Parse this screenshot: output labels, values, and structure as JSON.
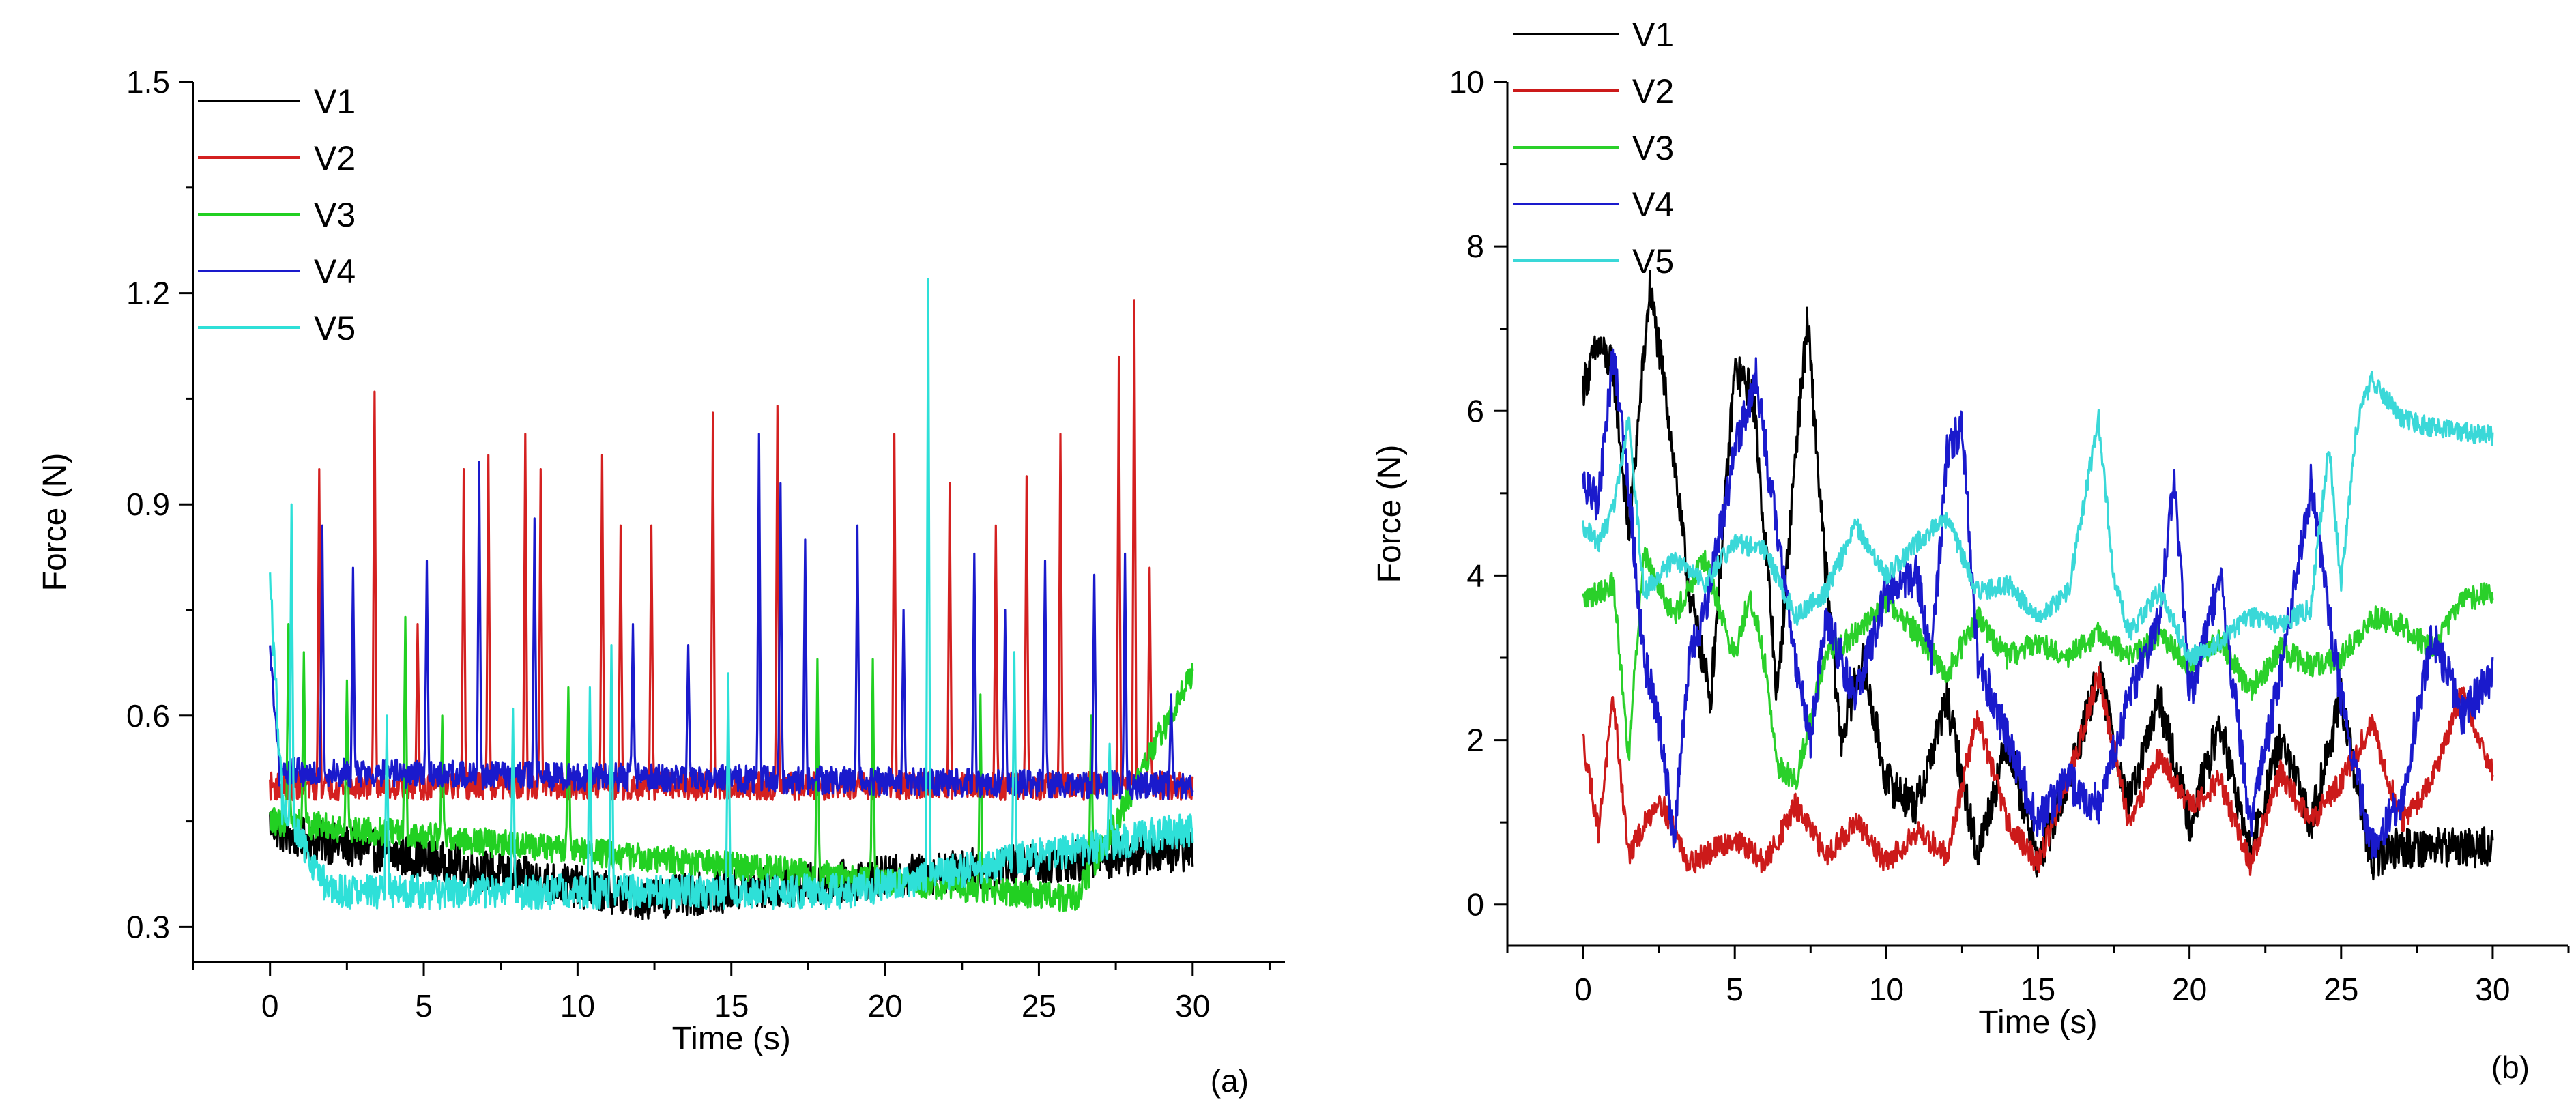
{
  "chart_data": [
    {
      "type": "line",
      "panel_label": "(a)",
      "xlabel": "Time (s)",
      "ylabel": "Force (N)",
      "xlim": [
        -2.5,
        33
      ],
      "ylim": [
        0.25,
        1.5
      ],
      "xticks": [
        0,
        5,
        10,
        15,
        20,
        25,
        30
      ],
      "yticks": [
        0.3,
        0.6,
        0.9,
        1.2,
        1.5
      ],
      "ytick_labels": [
        "0.3",
        "0.6",
        "0.9",
        "1.2",
        "1.5"
      ],
      "legend_position": "top-left",
      "series": [
        {
          "name": "V1",
          "color": "#000000",
          "baseline": 0.42,
          "noise": 0.03,
          "points": [
            [
              0,
              0.45
            ],
            [
              0.5,
              0.43
            ],
            [
              12.2,
              0.34
            ],
            [
              30,
              0.41
            ]
          ],
          "spikes": []
        },
        {
          "name": "V2",
          "color": "#d42020",
          "baseline": 0.5,
          "noise": 0.02,
          "points": [
            [
              0,
              0.5
            ],
            [
              30,
              0.5
            ]
          ],
          "spikes": [
            [
              1.6,
              0.95
            ],
            [
              3.4,
              1.06
            ],
            [
              4.8,
              0.73
            ],
            [
              6.3,
              0.95
            ],
            [
              7.1,
              0.97
            ],
            [
              8.3,
              1.0
            ],
            [
              8.8,
              0.95
            ],
            [
              10.8,
              0.97
            ],
            [
              11.4,
              0.87
            ],
            [
              12.4,
              0.87
            ],
            [
              14.4,
              1.03
            ],
            [
              16.5,
              1.04
            ],
            [
              20.3,
              1.0
            ],
            [
              22.1,
              0.93
            ],
            [
              23.6,
              0.87
            ],
            [
              24.6,
              0.94
            ],
            [
              25.7,
              1.0
            ],
            [
              27.6,
              1.11
            ],
            [
              28.1,
              1.19
            ],
            [
              28.6,
              0.81
            ]
          ]
        },
        {
          "name": "V3",
          "color": "#22d022",
          "baseline": 0.45,
          "noise": 0.02,
          "points": [
            [
              0,
              0.45
            ],
            [
              26.2,
              0.34
            ],
            [
              30,
              0.66
            ]
          ],
          "spikes": [
            [
              0.6,
              0.73
            ],
            [
              1.1,
              0.69
            ],
            [
              2.5,
              0.65
            ],
            [
              4.4,
              0.74
            ],
            [
              5.6,
              0.6
            ],
            [
              9.7,
              0.64
            ],
            [
              17.8,
              0.68
            ],
            [
              19.6,
              0.68
            ],
            [
              23.1,
              0.63
            ],
            [
              26.7,
              0.6
            ],
            [
              28.9,
              0.59
            ]
          ]
        },
        {
          "name": "V4",
          "color": "#1a1acc",
          "baseline": 0.51,
          "noise": 0.02,
          "points": [
            [
              0,
              0.69
            ],
            [
              0.3,
              0.52
            ],
            [
              30,
              0.5
            ]
          ],
          "spikes": [
            [
              1.7,
              0.87
            ],
            [
              2.7,
              0.81
            ],
            [
              5.1,
              0.82
            ],
            [
              6.8,
              0.96
            ],
            [
              8.6,
              0.88
            ],
            [
              11.8,
              0.73
            ],
            [
              13.6,
              0.7
            ],
            [
              15.9,
              1.0
            ],
            [
              16.6,
              0.93
            ],
            [
              17.4,
              0.85
            ],
            [
              19.1,
              0.87
            ],
            [
              20.6,
              0.75
            ],
            [
              22.9,
              0.83
            ],
            [
              23.9,
              0.75
            ],
            [
              25.2,
              0.82
            ],
            [
              26.8,
              0.8
            ],
            [
              27.8,
              0.83
            ],
            [
              29.3,
              0.63
            ]
          ]
        },
        {
          "name": "V5",
          "color": "#2ee0d8",
          "baseline": 0.46,
          "noise": 0.025,
          "points": [
            [
              0,
              0.79
            ],
            [
              0.4,
              0.47
            ],
            [
              1.9,
              0.35
            ],
            [
              18.6,
              0.35
            ],
            [
              30,
              0.44
            ]
          ],
          "spikes": [
            [
              0.7,
              0.9
            ],
            [
              3.8,
              0.6
            ],
            [
              7.9,
              0.61
            ],
            [
              10.4,
              0.64
            ],
            [
              11.1,
              0.7
            ],
            [
              14.9,
              0.66
            ],
            [
              21.4,
              1.22
            ],
            [
              24.2,
              0.69
            ],
            [
              27.3,
              0.56
            ]
          ]
        }
      ]
    },
    {
      "type": "line",
      "panel_label": "(b)",
      "xlabel": "Time (s)",
      "ylabel": "Force (N)",
      "xlim": [
        -2.5,
        32.5
      ],
      "ylim": [
        -0.5,
        10
      ],
      "xticks": [
        0,
        5,
        10,
        15,
        20,
        25,
        30
      ],
      "yticks": [
        0,
        2,
        4,
        6,
        8,
        10
      ],
      "ytick_labels": [
        "0",
        "2",
        "4",
        "6",
        "8",
        "10"
      ],
      "legend_position": "top-left",
      "series": [
        {
          "name": "V1",
          "color": "#000000",
          "noise": 0.25,
          "points": [
            [
              0,
              6.3
            ],
            [
              0.5,
              6.8
            ],
            [
              1,
              6.5
            ],
            [
              1.5,
              4.5
            ],
            [
              2.2,
              7.5
            ],
            [
              2.8,
              6.0
            ],
            [
              3.5,
              3.8
            ],
            [
              4.2,
              2.5
            ],
            [
              5,
              6.5
            ],
            [
              5.6,
              6.2
            ],
            [
              6.1,
              4.0
            ],
            [
              6.4,
              2.5
            ],
            [
              7,
              5.5
            ],
            [
              7.4,
              7.1
            ],
            [
              7.9,
              4.5
            ],
            [
              8.5,
              2.0
            ],
            [
              9.2,
              3.0
            ],
            [
              10,
              1.5
            ],
            [
              11,
              1.2
            ],
            [
              12,
              2.5
            ],
            [
              13,
              0.6
            ],
            [
              14,
              2.0
            ],
            [
              15,
              0.5
            ],
            [
              16,
              1.5
            ],
            [
              17,
              2.8
            ],
            [
              18,
              1.2
            ],
            [
              19,
              2.5
            ],
            [
              20,
              1.0
            ],
            [
              21,
              2.2
            ],
            [
              22,
              0.6
            ],
            [
              23,
              2.0
            ],
            [
              24,
              1.0
            ],
            [
              25,
              2.5
            ],
            [
              26,
              0.5
            ],
            [
              26.8,
              0.7
            ],
            [
              30,
              0.7
            ]
          ]
        },
        {
          "name": "V2",
          "color": "#cc1a1a",
          "noise": 0.15,
          "points": [
            [
              0,
              2.0
            ],
            [
              0.5,
              0.9
            ],
            [
              1,
              2.5
            ],
            [
              1.5,
              0.6
            ],
            [
              2.5,
              1.3
            ],
            [
              3.5,
              0.5
            ],
            [
              5,
              0.8
            ],
            [
              6,
              0.5
            ],
            [
              7,
              1.2
            ],
            [
              8,
              0.6
            ],
            [
              9,
              1.0
            ],
            [
              10,
              0.5
            ],
            [
              11,
              0.9
            ],
            [
              12,
              0.6
            ],
            [
              13,
              2.3
            ],
            [
              14,
              1.0
            ],
            [
              15,
              0.5
            ],
            [
              16,
              1.5
            ],
            [
              17,
              2.8
            ],
            [
              18,
              1.0
            ],
            [
              19,
              1.8
            ],
            [
              20,
              1.2
            ],
            [
              21,
              1.5
            ],
            [
              22,
              0.5
            ],
            [
              23,
              1.6
            ],
            [
              24,
              1.0
            ],
            [
              25,
              1.5
            ],
            [
              26,
              2.2
            ],
            [
              27,
              1.0
            ],
            [
              28,
              1.5
            ],
            [
              29,
              2.6
            ],
            [
              30,
              1.6
            ]
          ]
        },
        {
          "name": "V3",
          "color": "#2ad02a",
          "noise": 0.15,
          "points": [
            [
              0,
              3.7
            ],
            [
              1,
              3.9
            ],
            [
              1.5,
              1.8
            ],
            [
              2,
              4.3
            ],
            [
              3,
              3.5
            ],
            [
              4,
              4.2
            ],
            [
              5,
              3.0
            ],
            [
              5.5,
              3.8
            ],
            [
              6,
              2.9
            ],
            [
              6.4,
              1.7
            ],
            [
              7,
              1.5
            ],
            [
              8,
              3.0
            ],
            [
              9,
              3.3
            ],
            [
              10,
              3.7
            ],
            [
              11,
              3.3
            ],
            [
              12,
              2.8
            ],
            [
              13,
              3.5
            ],
            [
              14,
              3.0
            ],
            [
              15,
              3.2
            ],
            [
              16,
              3.0
            ],
            [
              17,
              3.3
            ],
            [
              18,
              3.0
            ],
            [
              19,
              3.3
            ],
            [
              20,
              2.9
            ],
            [
              21,
              3.2
            ],
            [
              22,
              2.6
            ],
            [
              23,
              3.1
            ],
            [
              24,
              2.9
            ],
            [
              25,
              3.0
            ],
            [
              26,
              3.5
            ],
            [
              27,
              3.4
            ],
            [
              28,
              3.1
            ],
            [
              29,
              3.7
            ],
            [
              30,
              3.8
            ]
          ]
        },
        {
          "name": "V4",
          "color": "#1a1acc",
          "noise": 0.25,
          "points": [
            [
              0,
              5.1
            ],
            [
              0.5,
              4.9
            ],
            [
              1,
              6.7
            ],
            [
              1.4,
              5.5
            ],
            [
              2,
              3.0
            ],
            [
              2.5,
              2.2
            ],
            [
              3,
              0.8
            ],
            [
              3.5,
              3.0
            ],
            [
              4,
              3.5
            ],
            [
              5,
              5.5
            ],
            [
              5.7,
              6.4
            ],
            [
              6.4,
              4.5
            ],
            [
              7,
              3.0
            ],
            [
              7.5,
              2.0
            ],
            [
              8,
              3.5
            ],
            [
              9,
              2.5
            ],
            [
              10,
              3.8
            ],
            [
              11,
              4.0
            ],
            [
              11.5,
              3.0
            ],
            [
              12,
              5.5
            ],
            [
              12.5,
              5.8
            ],
            [
              13,
              3.0
            ],
            [
              14,
              2.0
            ],
            [
              15,
              1.0
            ],
            [
              16,
              1.5
            ],
            [
              17,
              1.2
            ],
            [
              18,
              2.5
            ],
            [
              19,
              3.5
            ],
            [
              19.5,
              5.2
            ],
            [
              20,
              2.5
            ],
            [
              21,
              4.0
            ],
            [
              22,
              1.0
            ],
            [
              23,
              2.8
            ],
            [
              24,
              5.1
            ],
            [
              25,
              2.5
            ],
            [
              26,
              0.7
            ],
            [
              27,
              1.3
            ],
            [
              28,
              3.3
            ],
            [
              29,
              2.3
            ],
            [
              30,
              2.8
            ]
          ]
        },
        {
          "name": "V5",
          "color": "#3ad8d8",
          "noise": 0.12,
          "points": [
            [
              0,
              4.6
            ],
            [
              0.5,
              4.4
            ],
            [
              1,
              4.8
            ],
            [
              1.5,
              5.9
            ],
            [
              2,
              3.8
            ],
            [
              3,
              4.2
            ],
            [
              4,
              3.9
            ],
            [
              5,
              4.4
            ],
            [
              6,
              4.3
            ],
            [
              7,
              3.5
            ],
            [
              8,
              3.8
            ],
            [
              9,
              4.6
            ],
            [
              10,
              4.0
            ],
            [
              11,
              4.4
            ],
            [
              12,
              4.7
            ],
            [
              13,
              3.8
            ],
            [
              14,
              3.9
            ],
            [
              15,
              3.5
            ],
            [
              16,
              3.8
            ],
            [
              17,
              5.9
            ],
            [
              17.5,
              4.0
            ],
            [
              18,
              3.3
            ],
            [
              19,
              3.8
            ],
            [
              20,
              3.0
            ],
            [
              21,
              3.2
            ],
            [
              22,
              3.5
            ],
            [
              23,
              3.4
            ],
            [
              24,
              3.6
            ],
            [
              24.6,
              5.6
            ],
            [
              25,
              3.9
            ],
            [
              25.5,
              5.8
            ],
            [
              26,
              6.4
            ],
            [
              27,
              5.9
            ],
            [
              28,
              5.8
            ],
            [
              30,
              5.7
            ]
          ]
        }
      ]
    }
  ]
}
